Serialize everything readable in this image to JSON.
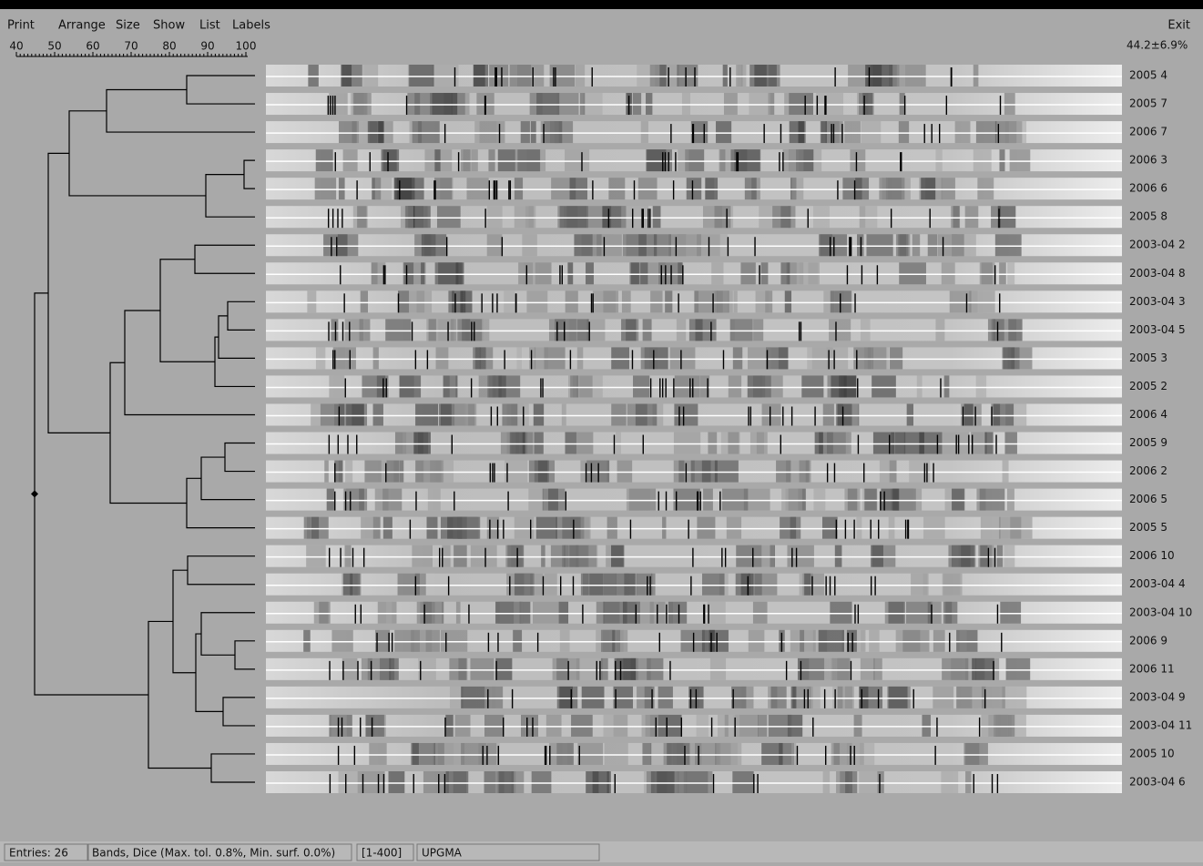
{
  "menu": {
    "items": [
      "Print",
      "Arrange",
      "Size",
      "Show",
      "List",
      "Labels"
    ],
    "exit": "Exit"
  },
  "scale": {
    "ticks": [
      40,
      50,
      60,
      70,
      80,
      90,
      100
    ],
    "stat": "44.2±6.9%"
  },
  "rows": [
    "2005 4",
    "2005 7",
    "2006 7",
    "2006 3",
    "2006 6",
    "2005 8",
    "2003-04 2",
    "2003-04 8",
    "2003-04 3",
    "2003-04 5",
    "2005 3",
    "2005 2",
    "2006 4",
    "2005 9",
    "2006 2",
    "2006 5",
    "2005 5",
    "2006 10",
    "2003-04 4",
    "2003-04 10",
    "2006 9",
    "2006 11",
    "2003-04 9",
    "2003-04 11",
    "2005 10",
    "2003-04 6"
  ],
  "status": {
    "entries": "Entries: 26",
    "method": "Bands, Dice (Max. tol. 0.8%, Min. surf. 0.0%)",
    "range": "[1-400]",
    "clustering": "UPGMA"
  }
}
